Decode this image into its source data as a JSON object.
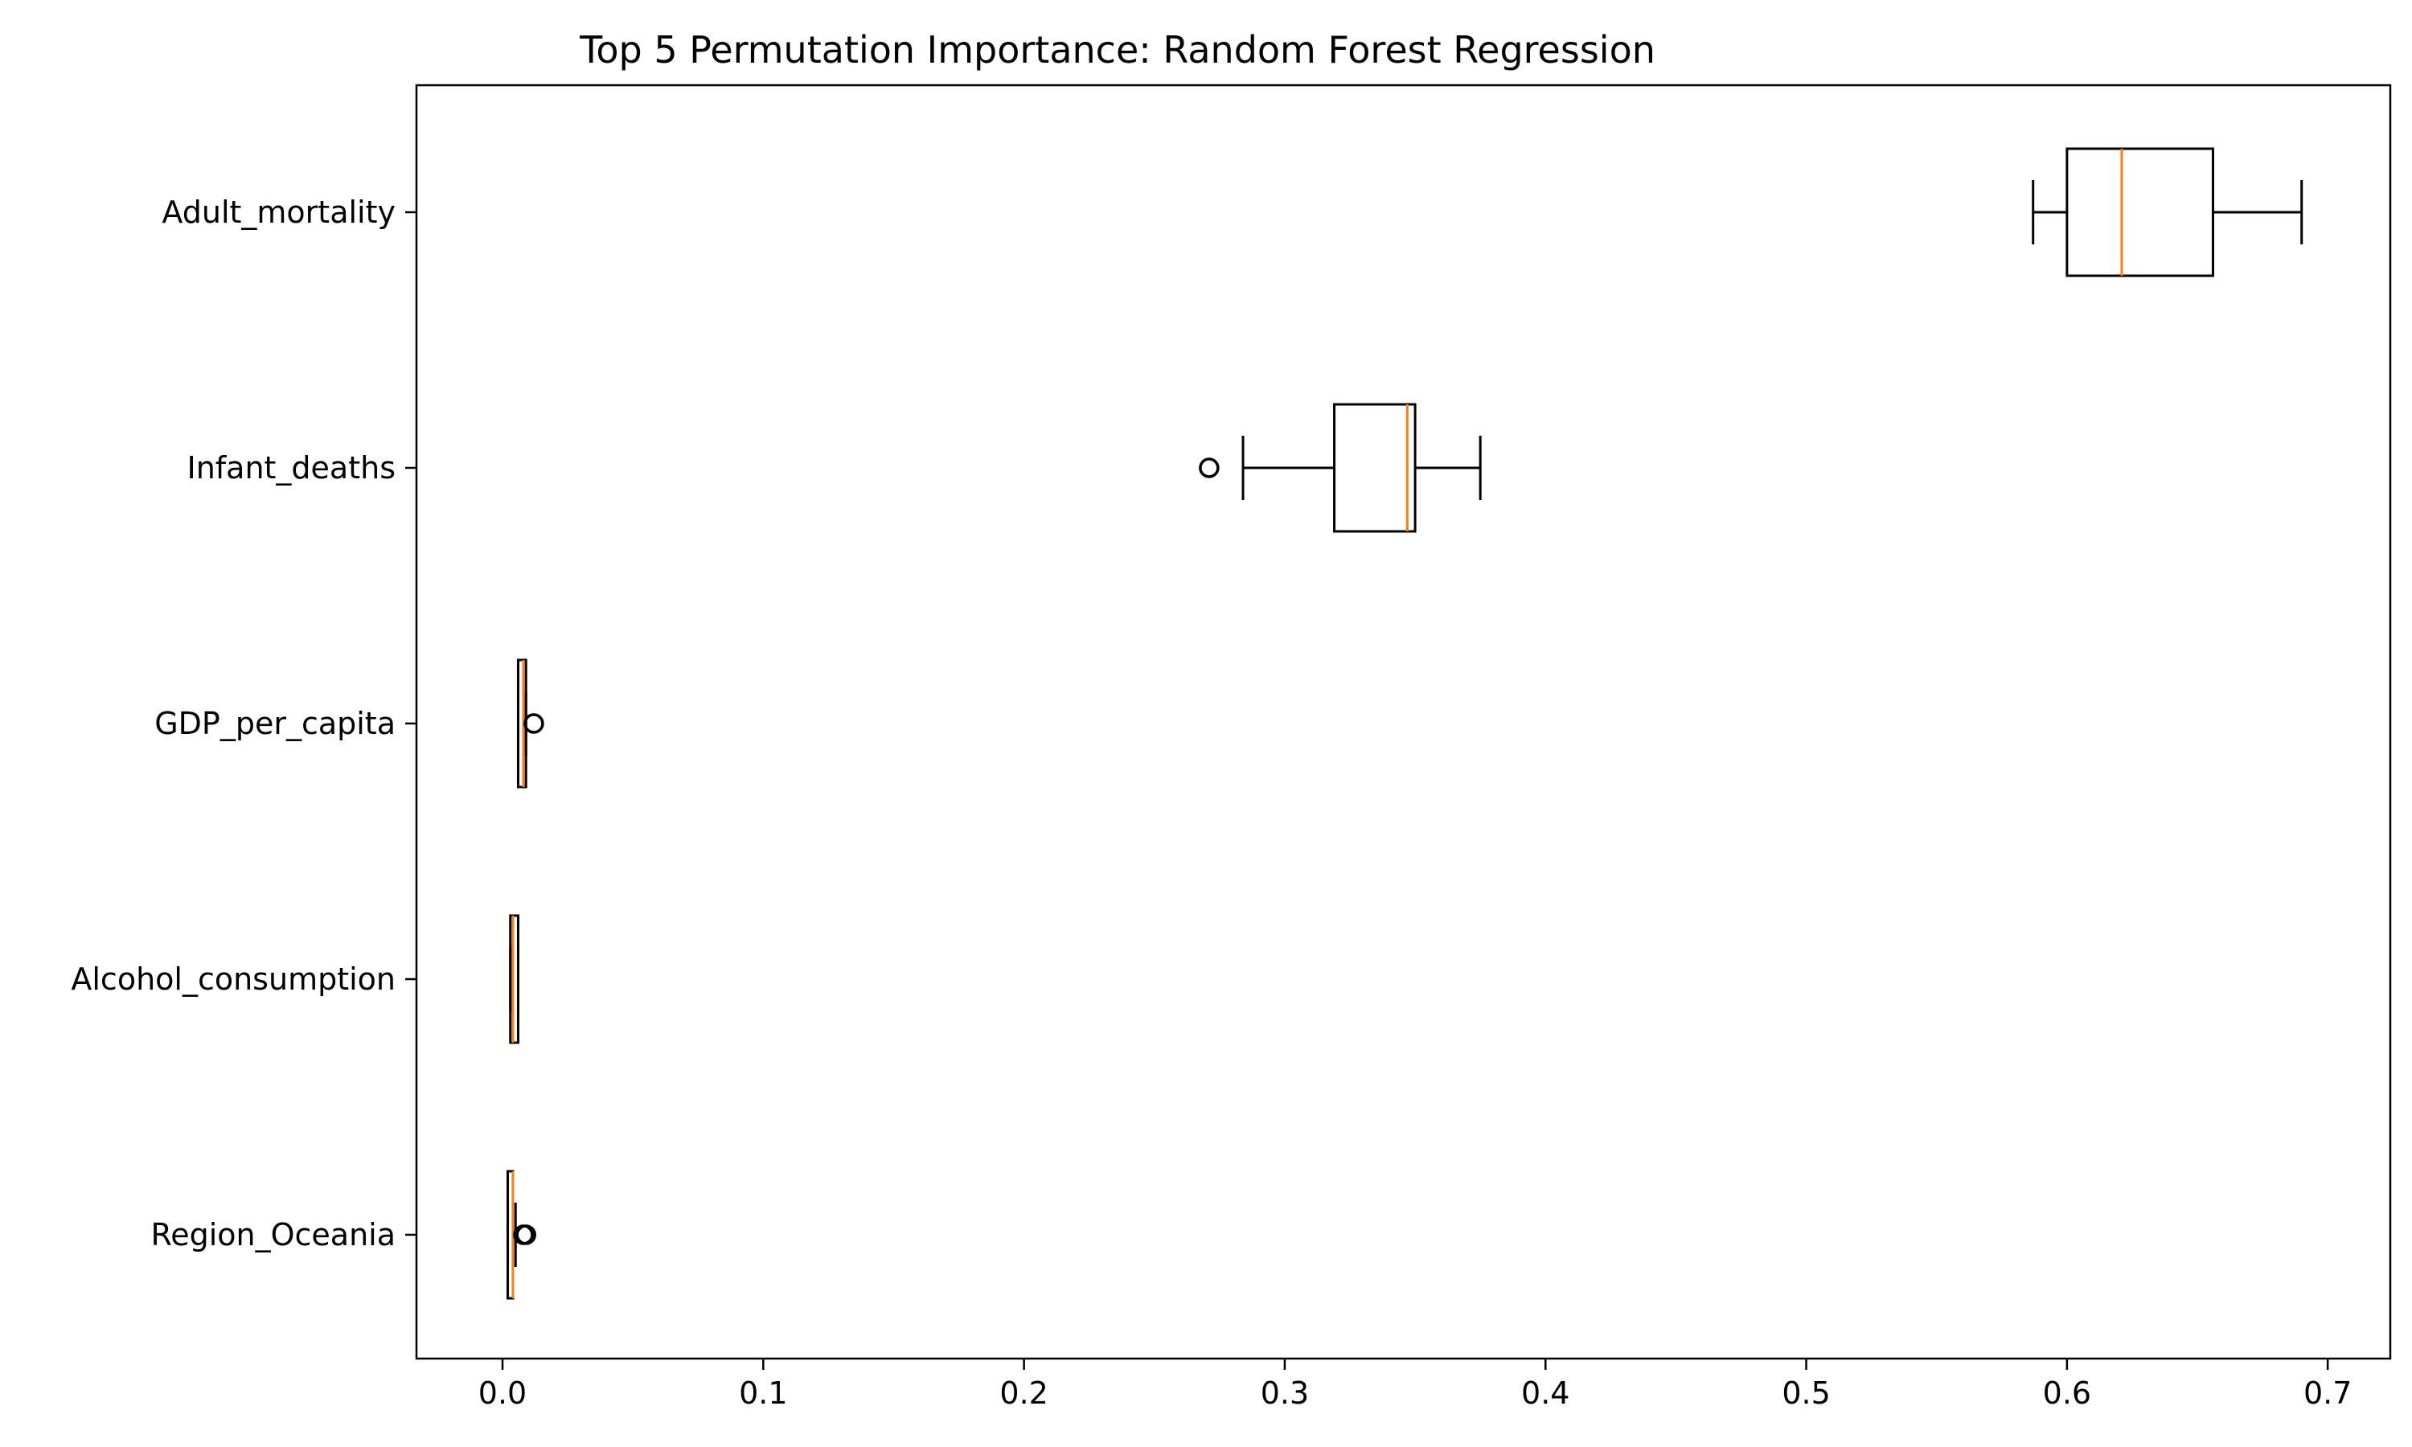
{
  "chart_data": {
    "type": "boxplot",
    "orientation": "horizontal",
    "title": "Top 5 Permutation Importance: Random Forest Regression",
    "xlabel": "",
    "ylabel": "",
    "xlim": [
      -0.033,
      0.724
    ],
    "x_ticks": [
      0.0,
      0.1,
      0.2,
      0.3,
      0.4,
      0.5,
      0.6,
      0.7
    ],
    "x_tick_labels": [
      "0.0",
      "0.1",
      "0.2",
      "0.3",
      "0.4",
      "0.5",
      "0.6",
      "0.7"
    ],
    "grid": false,
    "categories": [
      "Adult_mortality",
      "Infant_deaths",
      "GDP_per_capita",
      "Alcohol_consumption",
      "Region_Oceania"
    ],
    "boxes": [
      {
        "category": "Adult_mortality",
        "whisker_low": 0.587,
        "q1": 0.6,
        "median": 0.621,
        "q3": 0.656,
        "whisker_high": 0.69,
        "outliers": []
      },
      {
        "category": "Infant_deaths",
        "whisker_low": 0.284,
        "q1": 0.319,
        "median": 0.347,
        "q3": 0.35,
        "whisker_high": 0.375,
        "outliers": [
          0.271
        ]
      },
      {
        "category": "GDP_per_capita",
        "whisker_low": 0.006,
        "q1": 0.006,
        "median": 0.008,
        "q3": 0.009,
        "whisker_high": 0.009,
        "outliers": [
          0.012
        ]
      },
      {
        "category": "Alcohol_consumption",
        "whisker_low": 0.003,
        "q1": 0.003,
        "median": 0.004,
        "q3": 0.006,
        "whisker_high": 0.006,
        "outliers": []
      },
      {
        "category": "Region_Oceania",
        "whisker_low": 0.002,
        "q1": 0.002,
        "median": 0.004,
        "q3": 0.004,
        "whisker_high": 0.005,
        "outliers": [
          0.008,
          0.009
        ]
      }
    ],
    "colors": {
      "box": "#000000",
      "median": "#ff7f0e",
      "axes": "#000000",
      "background": "#ffffff"
    }
  }
}
